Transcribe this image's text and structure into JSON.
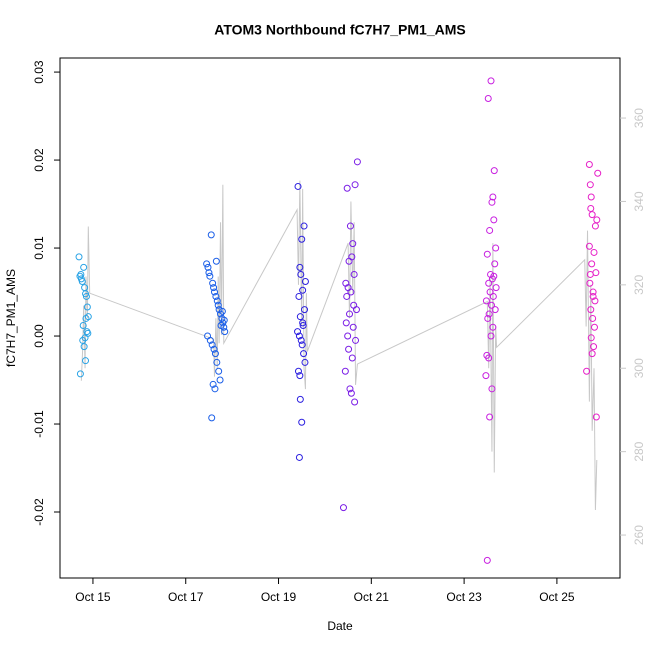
{
  "chart_data": {
    "type": "scatter",
    "title": "ATOM3 Northbound fC7H7_PM1_AMS",
    "x_label": "Date",
    "y_label": "fC7H7_PM1_AMS",
    "xlim": [
      14.29,
      26.36
    ],
    "xticks": [
      {
        "value": 15,
        "label": "Oct 15"
      },
      {
        "value": 17,
        "label": "Oct 17"
      },
      {
        "value": 19,
        "label": "Oct 19"
      },
      {
        "value": 21,
        "label": "Oct 21"
      },
      {
        "value": 23,
        "label": "Oct 23"
      },
      {
        "value": 25,
        "label": "Oct 25"
      }
    ],
    "ylim": [
      -0.0275,
      0.0316
    ],
    "yticks": [
      {
        "value": -0.02,
        "label": "-0.02"
      },
      {
        "value": -0.01,
        "label": "-0.01"
      },
      {
        "value": 0,
        "label": "0.00"
      },
      {
        "value": 0.01,
        "label": "0.01"
      },
      {
        "value": 0.02,
        "label": "0.02"
      },
      {
        "value": 0.03,
        "label": "0.03"
      }
    ],
    "y2lim": [
      249.7,
      374.4
    ],
    "y2ticks": [
      260,
      280,
      300,
      320,
      340,
      360
    ],
    "y2_color": "#c8c8c8",
    "series": [
      {
        "color": "#29a3e6",
        "x": [
          14.7,
          14.72,
          14.75,
          14.77,
          14.8,
          14.82,
          14.84,
          14.86,
          14.88,
          14.9,
          14.85,
          14.87,
          14.89,
          14.83,
          14.78,
          14.81,
          14.84,
          14.73,
          14.79,
          14.74
        ],
        "values": [
          0.009,
          0.0068,
          0.0065,
          0.0062,
          0.0078,
          0.0055,
          0.0048,
          0.0045,
          0.0033,
          0.0022,
          0.002,
          0.0005,
          0.0003,
          -0.0002,
          -0.0005,
          -0.0012,
          -0.0028,
          -0.0043,
          0.0012,
          0.007
        ]
      },
      {
        "color": "#1a5ee8",
        "x": [
          17.55,
          17.45,
          17.48,
          17.5,
          17.52,
          17.58,
          17.6,
          17.62,
          17.65,
          17.68,
          17.7,
          17.72,
          17.75,
          17.78,
          17.8,
          17.82,
          17.84,
          17.47,
          17.53,
          17.57,
          17.61,
          17.64,
          17.67,
          17.71,
          17.74,
          17.59,
          17.63,
          17.56,
          17.66,
          17.79,
          17.83,
          17.76
        ],
        "values": [
          0.0115,
          0.0082,
          0.0078,
          0.0072,
          0.0068,
          0.006,
          0.0055,
          0.005,
          0.0045,
          0.004,
          0.0035,
          0.003,
          0.0025,
          0.002,
          0.0015,
          0.001,
          0.0005,
          0,
          -0.0005,
          -0.001,
          -0.0015,
          -0.002,
          -0.003,
          -0.004,
          -0.005,
          -0.0055,
          -0.006,
          -0.0093,
          0.0085,
          0.0028,
          0.0018,
          0.0012
        ]
      },
      {
        "color": "#2b1fe0",
        "x": [
          19.42,
          19.55,
          19.5,
          19.46,
          19.48,
          19.52,
          19.44,
          19.56,
          19.47,
          19.53,
          19.41,
          19.45,
          19.49,
          19.51,
          19.54,
          19.57,
          19.43,
          19.46,
          19.47,
          19.5,
          19.45,
          19.58,
          19.52
        ],
        "values": [
          0.017,
          0.0125,
          0.011,
          0.0078,
          0.007,
          0.0052,
          0.0045,
          0.003,
          0.0022,
          0.0012,
          0.0005,
          0,
          -0.0005,
          -0.001,
          -0.002,
          -0.003,
          -0.004,
          -0.0045,
          -0.0072,
          -0.0098,
          -0.0138,
          0.0062,
          0.0015
        ]
      },
      {
        "color": "#7a1de6",
        "x": [
          20.7,
          20.65,
          20.48,
          20.55,
          20.6,
          20.58,
          20.52,
          20.63,
          20.45,
          20.5,
          20.56,
          20.47,
          20.68,
          20.53,
          20.46,
          20.61,
          20.49,
          20.66,
          20.51,
          20.59,
          20.44,
          20.54,
          20.57,
          20.64,
          20.4,
          20.62
        ],
        "values": [
          0.0198,
          0.0172,
          0.0168,
          0.0125,
          0.0105,
          0.009,
          0.0085,
          0.007,
          0.006,
          0.0055,
          0.005,
          0.0045,
          0.003,
          0.0025,
          0.0015,
          0.001,
          0,
          -0.0005,
          -0.0015,
          -0.0025,
          -0.004,
          -0.006,
          -0.0065,
          -0.0075,
          -0.0195,
          0.0035
        ]
      },
      {
        "color": "#c81fe0",
        "x": [
          23.58,
          23.52,
          23.65,
          23.62,
          23.6,
          23.64,
          23.55,
          23.68,
          23.5,
          23.66,
          23.57,
          23.61,
          23.53,
          23.69,
          23.56,
          23.63,
          23.48,
          23.59,
          23.67,
          23.54,
          23.51,
          23.62,
          23.58,
          23.49,
          23.53,
          23.47,
          23.6,
          23.55,
          23.5,
          23.64
        ],
        "values": [
          0.029,
          0.027,
          0.0188,
          0.0158,
          0.0152,
          0.0132,
          0.012,
          0.01,
          0.0093,
          0.0082,
          0.007,
          0.0065,
          0.006,
          0.0055,
          0.005,
          0.0045,
          0.004,
          0.0035,
          0.003,
          0.0025,
          0.002,
          0.001,
          0,
          -0.0022,
          -0.0025,
          -0.0045,
          -0.006,
          -0.0092,
          -0.0255,
          0.0068
        ]
      },
      {
        "color": "#e61fc8",
        "x": [
          25.7,
          25.88,
          25.72,
          25.74,
          25.73,
          25.76,
          25.86,
          25.83,
          25.7,
          25.8,
          25.75,
          25.84,
          25.71,
          25.78,
          25.82,
          25.73,
          25.77,
          25.81,
          25.74,
          25.79,
          25.76,
          25.64,
          25.85,
          25.72,
          25.78
        ],
        "values": [
          0.0195,
          0.0185,
          0.0172,
          0.0158,
          0.0145,
          0.0138,
          0.0132,
          0.0125,
          0.0102,
          0.0095,
          0.0082,
          0.0072,
          0.006,
          0.005,
          0.004,
          0.003,
          0.002,
          0.001,
          -0.0002,
          -0.0012,
          -0.002,
          -0.004,
          -0.0092,
          0.007,
          0.0045
        ]
      },
      {
        "color": "#c8c8c8",
        "axis": "y2",
        "x": [
          14.75,
          14.78,
          14.8,
          14.83,
          14.85,
          14.88,
          14.9,
          14.93,
          17.6,
          17.62,
          17.65,
          17.68,
          17.7,
          17.72,
          17.75,
          17.77,
          17.8,
          17.82,
          19.4,
          19.43,
          19.46,
          19.5,
          19.52,
          19.55,
          19.58,
          19.6,
          19.62,
          20.5,
          20.53,
          20.56,
          20.6,
          20.63,
          20.66,
          20.7,
          23.5,
          23.53,
          23.56,
          23.6,
          23.62,
          23.65,
          23.68,
          23.7,
          25.6,
          25.63,
          25.66,
          25.7,
          25.73,
          25.76,
          25.8,
          25.83,
          25.86
        ],
        "values": [
          297,
          305,
          315,
          300,
          322,
          312,
          334,
          318,
          307,
          298,
          312,
          300,
          322,
          306,
          335,
          308,
          344,
          306,
          338,
          320,
          345,
          310,
          343,
          300,
          295,
          318,
          304,
          330,
          312,
          340,
          318,
          335,
          296,
          301,
          316,
          300,
          322,
          280,
          330,
          275,
          310,
          305,
          326,
          310,
          333,
          292,
          320,
          285,
          300,
          266,
          278
        ]
      }
    ]
  }
}
